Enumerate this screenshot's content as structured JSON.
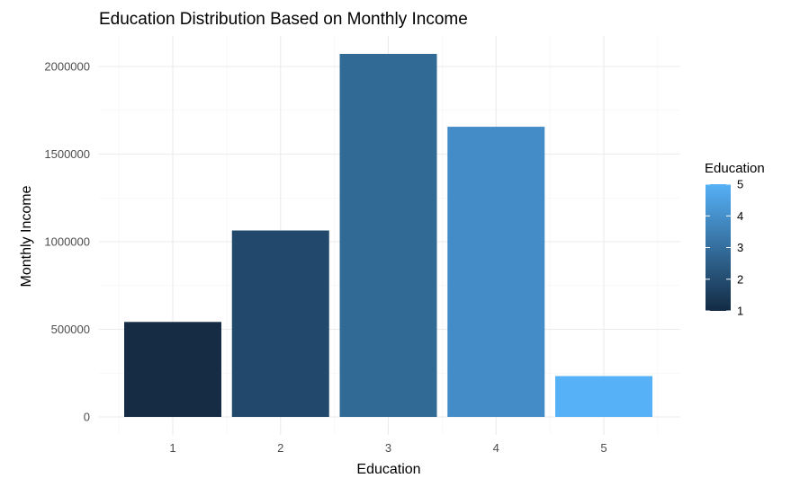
{
  "chart_data": {
    "type": "bar",
    "title": "Education Distribution Based on Monthly Income",
    "xlabel": "Education",
    "ylabel": "Monthly Income",
    "categories": [
      "1",
      "2",
      "3",
      "4",
      "5"
    ],
    "values": [
      542000,
      1064000,
      2072000,
      1656000,
      233000
    ],
    "ylim": [
      0,
      2100000
    ],
    "yticks": [
      0,
      500000,
      1000000,
      1500000,
      2000000
    ],
    "ytick_labels": [
      "0",
      "500000",
      "1000000",
      "1500000",
      "2000000"
    ],
    "grid": true,
    "legend": {
      "title": "Education",
      "placement": "right",
      "type": "colorbar",
      "range": [
        1,
        5
      ],
      "ticks": [
        "1",
        "2",
        "3",
        "4",
        "5"
      ],
      "colors": {
        "low": "#132b43",
        "high": "#56b1f7"
      }
    },
    "bar_colors": [
      "#162c44",
      "#22496b",
      "#316a95",
      "#448cc8",
      "#56b1f7"
    ]
  }
}
